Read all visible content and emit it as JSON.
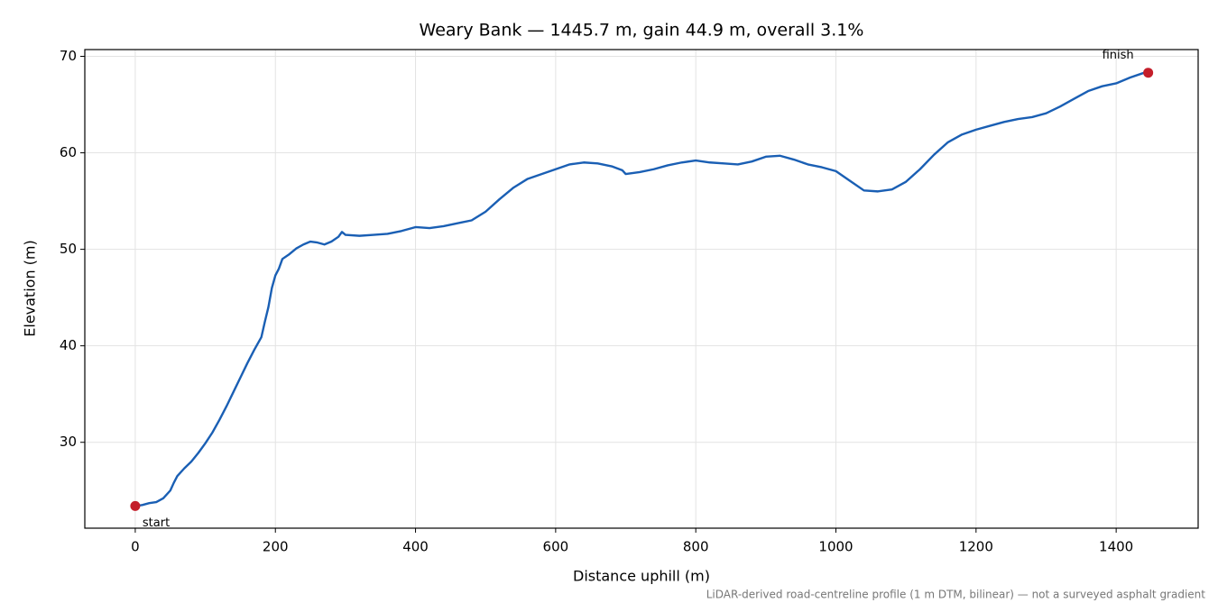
{
  "chart_data": {
    "type": "line",
    "title": "Weary Bank — 1445.7 m, gain 44.9 m, overall 3.1%",
    "x_label": "Distance uphill (m)",
    "y_label": "Elevation (m)",
    "note": "LiDAR-derived road-centreline profile (1 m DTM, bilinear) — not a surveyed asphalt gradient",
    "annotations": [
      "start",
      "finish"
    ],
    "marker_color": "#c41e2a",
    "grid": true,
    "xlim": [
      -72,
      1517
    ],
    "ylim": [
      21.1,
      70.7
    ],
    "xticks": [
      0,
      200,
      400,
      600,
      800,
      1000,
      1200,
      1400
    ],
    "yticks": [
      30,
      40,
      50,
      60,
      70
    ],
    "series": [
      {
        "color": "#1a5fb4",
        "x": [
          0,
          10,
          20,
          30,
          40,
          50,
          55,
          60,
          70,
          80,
          90,
          100,
          110,
          120,
          130,
          140,
          150,
          160,
          170,
          180,
          185,
          190,
          195,
          200,
          205,
          210,
          220,
          230,
          240,
          250,
          260,
          270,
          280,
          290,
          295,
          300,
          320,
          340,
          360,
          380,
          400,
          420,
          440,
          460,
          480,
          500,
          520,
          540,
          560,
          580,
          600,
          620,
          640,
          660,
          680,
          695,
          700,
          720,
          740,
          760,
          780,
          800,
          820,
          840,
          860,
          880,
          900,
          920,
          940,
          960,
          980,
          1000,
          1020,
          1040,
          1060,
          1080,
          1100,
          1120,
          1140,
          1160,
          1180,
          1200,
          1220,
          1240,
          1260,
          1280,
          1300,
          1320,
          1340,
          1360,
          1380,
          1400,
          1420,
          1440,
          1445.7
        ],
        "values": [
          23.4,
          23.5,
          23.7,
          23.8,
          24.2,
          25.0,
          25.8,
          26.5,
          27.3,
          28.0,
          28.9,
          29.9,
          31.0,
          32.3,
          33.7,
          35.2,
          36.7,
          38.2,
          39.6,
          40.9,
          42.5,
          44.0,
          46.0,
          47.3,
          48.0,
          49.0,
          49.5,
          50.1,
          50.5,
          50.8,
          50.7,
          50.5,
          50.8,
          51.3,
          51.8,
          51.5,
          51.4,
          51.5,
          51.6,
          51.9,
          52.3,
          52.2,
          52.4,
          52.7,
          53.0,
          53.9,
          55.2,
          56.4,
          57.3,
          57.8,
          58.3,
          58.8,
          59.0,
          58.9,
          58.6,
          58.2,
          57.8,
          58.0,
          58.3,
          58.7,
          59.0,
          59.2,
          59.0,
          58.9,
          58.8,
          59.1,
          59.6,
          59.7,
          59.3,
          58.8,
          58.5,
          58.1,
          57.1,
          56.1,
          56.0,
          56.2,
          57.0,
          58.3,
          59.8,
          61.1,
          61.9,
          62.4,
          62.8,
          63.2,
          63.5,
          63.7,
          64.1,
          64.8,
          65.6,
          66.4,
          66.9,
          67.2,
          67.8,
          68.3,
          68.3
        ]
      }
    ]
  }
}
